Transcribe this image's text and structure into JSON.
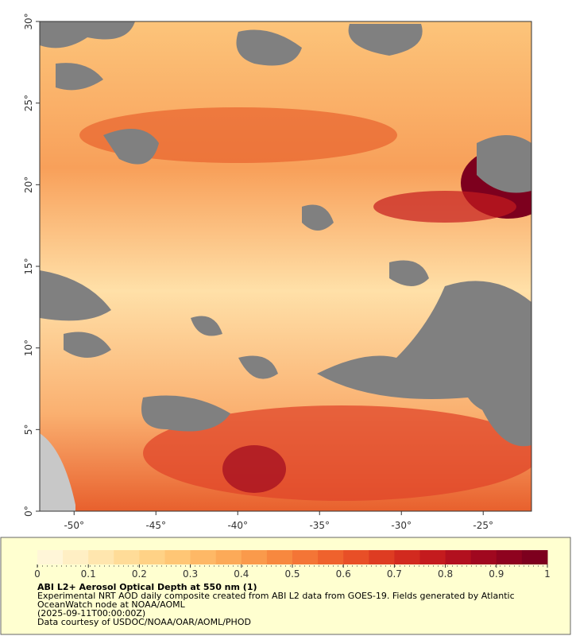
{
  "map": {
    "xlim": [
      -52.1,
      -22.05
    ],
    "ylim": [
      0,
      30
    ],
    "xticks": [
      {
        "value": -50,
        "label": "-50°"
      },
      {
        "value": -45,
        "label": "-45°"
      },
      {
        "value": -40,
        "label": "-40°"
      },
      {
        "value": -35,
        "label": "-35°"
      },
      {
        "value": -30,
        "label": "-30°"
      },
      {
        "value": -25,
        "label": "-25°"
      }
    ],
    "yticks": [
      {
        "value": 0,
        "label": "0°"
      },
      {
        "value": 5,
        "label": "5°"
      },
      {
        "value": 10,
        "label": "10°"
      },
      {
        "value": 15,
        "label": "15°"
      },
      {
        "value": 20,
        "label": "20°"
      },
      {
        "value": 25,
        "label": "25°"
      },
      {
        "value": 30,
        "label": "30°"
      }
    ]
  },
  "colorbar": {
    "lim": [
      0,
      1
    ],
    "ticks": [
      0,
      0.1,
      0.2,
      0.3,
      0.4,
      0.5,
      0.6,
      0.7,
      0.8,
      0.9,
      1
    ],
    "colormap": [
      "#fff6d8",
      "#ffefc4",
      "#ffe6ae",
      "#ffdc98",
      "#ffd286",
      "#ffc675",
      "#feb866",
      "#fcaa58",
      "#fa9a4b",
      "#f7883f",
      "#f47536",
      "#ef622d",
      "#e84f27",
      "#de3c22",
      "#d22a1f",
      "#c41b1e",
      "#b2101f",
      "#a0081f",
      "#8e031f",
      "#7d001e"
    ]
  },
  "caption": {
    "title": "ABI L2+ Aerosol Optical Depth at 550 nm (1)",
    "lines": [
      "Experimental NRT AOD daily composite created from ABI L2 data from GOES-19. Fields generated by Atlantic",
      "OceanWatch node at NOAA/AOML",
      "(2025-09-11T00:00:00Z)",
      "Data courtesy of USDOC/NOAA/OAR/AOML/PHOD"
    ]
  }
}
